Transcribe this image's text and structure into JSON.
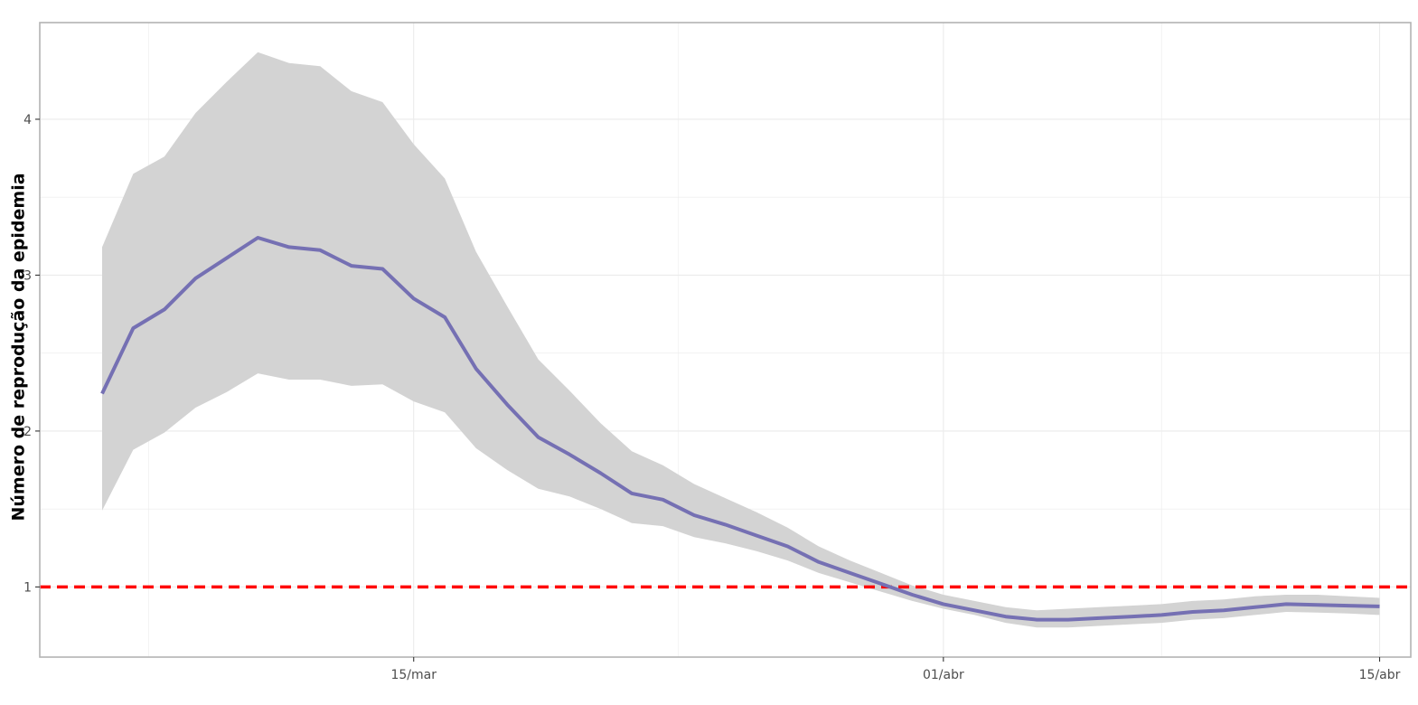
{
  "chart_data": {
    "type": "line",
    "title": "",
    "xlabel": "",
    "ylabel": "Número de reprodução da epidemia",
    "x_type": "date",
    "x_range": [
      "2020-03-03",
      "2020-04-16"
    ],
    "ylim": [
      0.55,
      4.62
    ],
    "grid": true,
    "legend": "none",
    "x_ticks": [
      {
        "date": "2020-03-15",
        "label": "15/mar"
      },
      {
        "date": "2020-04-01",
        "label": "01/abr"
      },
      {
        "date": "2020-04-15",
        "label": "15/abr"
      }
    ],
    "y_ticks": [
      {
        "value": 1,
        "label": "1"
      },
      {
        "value": 2,
        "label": "2"
      },
      {
        "value": 3,
        "label": "3"
      },
      {
        "value": 4,
        "label": "4"
      }
    ],
    "reference_line": {
      "y": 1,
      "color": "#ff0000",
      "style": "dashed"
    },
    "colors": {
      "line": "#7570b3",
      "band": "#d3d3d3",
      "grid": "#ebebeb",
      "frame": "#b3b3b3"
    },
    "x": [
      "2020-03-05",
      "2020-03-06",
      "2020-03-07",
      "2020-03-08",
      "2020-03-09",
      "2020-03-10",
      "2020-03-11",
      "2020-03-12",
      "2020-03-13",
      "2020-03-14",
      "2020-03-15",
      "2020-03-16",
      "2020-03-17",
      "2020-03-18",
      "2020-03-19",
      "2020-03-20",
      "2020-03-21",
      "2020-03-22",
      "2020-03-23",
      "2020-03-24",
      "2020-03-25",
      "2020-03-26",
      "2020-03-27",
      "2020-03-28",
      "2020-03-29",
      "2020-03-30",
      "2020-03-31",
      "2020-04-01",
      "2020-04-02",
      "2020-04-03",
      "2020-04-04",
      "2020-04-05",
      "2020-04-06",
      "2020-04-07",
      "2020-04-08",
      "2020-04-09",
      "2020-04-10",
      "2020-04-11",
      "2020-04-12",
      "2020-04-13",
      "2020-04-14",
      "2020-04-15"
    ],
    "series": [
      {
        "role": "estimate",
        "values": [
          2.24,
          2.66,
          2.78,
          2.98,
          3.11,
          3.24,
          3.18,
          3.16,
          3.06,
          3.04,
          2.85,
          2.73,
          2.4,
          2.17,
          1.96,
          1.85,
          1.73,
          1.6,
          1.56,
          1.46,
          1.4,
          1.33,
          1.26,
          1.16,
          1.09,
          1.02,
          0.95,
          0.89,
          0.85,
          0.81,
          0.79,
          0.79,
          0.8,
          0.81,
          0.82,
          0.84,
          0.85,
          0.87,
          0.89,
          0.885,
          0.88,
          0.875
        ]
      },
      {
        "role": "lower",
        "values": [
          1.49,
          1.88,
          1.99,
          2.15,
          2.25,
          2.37,
          2.33,
          2.33,
          2.29,
          2.3,
          2.19,
          2.12,
          1.89,
          1.75,
          1.63,
          1.58,
          1.5,
          1.41,
          1.39,
          1.32,
          1.28,
          1.23,
          1.17,
          1.09,
          1.03,
          0.97,
          0.91,
          0.86,
          0.82,
          0.77,
          0.74,
          0.74,
          0.75,
          0.76,
          0.77,
          0.79,
          0.8,
          0.82,
          0.84,
          0.835,
          0.83,
          0.82
        ]
      },
      {
        "role": "upper",
        "values": [
          3.18,
          3.65,
          3.76,
          4.04,
          4.24,
          4.43,
          4.36,
          4.34,
          4.18,
          4.11,
          3.84,
          3.62,
          3.15,
          2.8,
          2.46,
          2.26,
          2.05,
          1.87,
          1.78,
          1.66,
          1.57,
          1.48,
          1.38,
          1.26,
          1.17,
          1.09,
          1.01,
          0.95,
          0.91,
          0.87,
          0.85,
          0.86,
          0.87,
          0.88,
          0.89,
          0.91,
          0.92,
          0.94,
          0.95,
          0.95,
          0.94,
          0.93
        ]
      }
    ]
  }
}
